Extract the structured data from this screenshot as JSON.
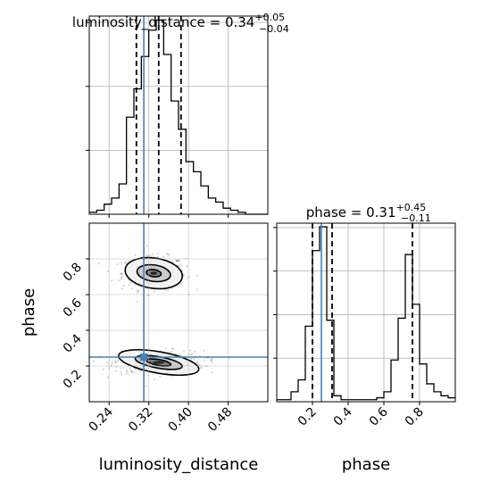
{
  "chart_data": {
    "type": "corner",
    "parameters": [
      "luminosity_distance",
      "phase"
    ],
    "colors": {
      "truth": "#4682b4",
      "line": "#000000",
      "grid": "#b0b0b0",
      "density": "#000000"
    },
    "grid": true,
    "marginals": [
      {
        "parameter": "luminosity_distance",
        "title": {
          "base": "luminosity_distance = 0.34",
          "sup": "+0.05",
          "sub": "−0.04"
        },
        "xlim": [
          0.2,
          0.56
        ],
        "quantiles": [
          0.295,
          0.34,
          0.385
        ],
        "truth": 0.31,
        "bin_edges": [
          0.2,
          0.215,
          0.23,
          0.245,
          0.26,
          0.275,
          0.29,
          0.305,
          0.32,
          0.335,
          0.35,
          0.365,
          0.38,
          0.395,
          0.41,
          0.425,
          0.44,
          0.455,
          0.47,
          0.485,
          0.5,
          0.515,
          0.53,
          0.545,
          0.56
        ],
        "counts": [
          0.01,
          0.02,
          0.05,
          0.08,
          0.15,
          0.48,
          0.62,
          0.78,
          0.91,
          0.96,
          0.79,
          0.56,
          0.42,
          0.26,
          0.21,
          0.14,
          0.08,
          0.06,
          0.03,
          0.02,
          0.01,
          0,
          0,
          0
        ]
      },
      {
        "parameter": "phase",
        "title": {
          "base": "phase = 0.31",
          "sup": "+0.45",
          "sub": "−0.11"
        },
        "xlim": [
          0,
          1.0
        ],
        "quantiles": [
          0.2,
          0.31,
          0.76
        ],
        "truth": 0.25,
        "bin_edges": [
          0,
          0.04,
          0.08,
          0.12,
          0.16,
          0.2,
          0.24,
          0.28,
          0.32,
          0.36,
          0.4,
          0.44,
          0.48,
          0.52,
          0.56,
          0.6,
          0.64,
          0.68,
          0.72,
          0.76,
          0.8,
          0.84,
          0.88,
          0.92,
          0.96,
          1.0
        ],
        "counts": [
          0.01,
          0.01,
          0.05,
          0.11,
          0.38,
          0.76,
          0.88,
          0.41,
          0.03,
          0.01,
          0.01,
          0.01,
          0.01,
          0.01,
          0.02,
          0.05,
          0.21,
          0.42,
          0.74,
          0.49,
          0.19,
          0.09,
          0.05,
          0.03,
          0.02
        ]
      }
    ],
    "joint": {
      "x_parameter": "luminosity_distance",
      "y_parameter": "phase",
      "xlim": [
        0.2,
        0.56
      ],
      "ylim": [
        0,
        1.0
      ],
      "truth": [
        0.31,
        0.25
      ],
      "clusters": [
        {
          "center": [
            0.33,
            0.72
          ],
          "levels": [
            [
              0.015,
              0.02
            ],
            [
              0.034,
              0.046
            ],
            [
              0.058,
              0.085
            ]
          ]
        },
        {
          "center": [
            0.34,
            0.22
          ],
          "levels": [
            [
              0.025,
              0.016
            ],
            [
              0.048,
              0.032
            ],
            [
              0.082,
              0.06
            ]
          ]
        }
      ]
    },
    "x_ticks": {
      "luminosity_distance": [
        0.24,
        0.32,
        0.4,
        0.48
      ],
      "phase": [
        0.2,
        0.4,
        0.6,
        0.8
      ]
    },
    "y_ticks": {
      "phase": [
        0.2,
        0.4,
        0.6,
        0.8
      ]
    },
    "x_tick_labels": {
      "luminosity_distance": [
        "0.24",
        "0.32",
        "0.40",
        "0.48"
      ],
      "phase": [
        "0.2",
        "0.4",
        "0.6",
        "0.8"
      ]
    },
    "y_tick_labels": {
      "phase": [
        "0.2",
        "0.4",
        "0.6",
        "0.8"
      ]
    },
    "xlabels": [
      "luminosity_distance",
      "phase"
    ],
    "ylabel": "phase"
  }
}
